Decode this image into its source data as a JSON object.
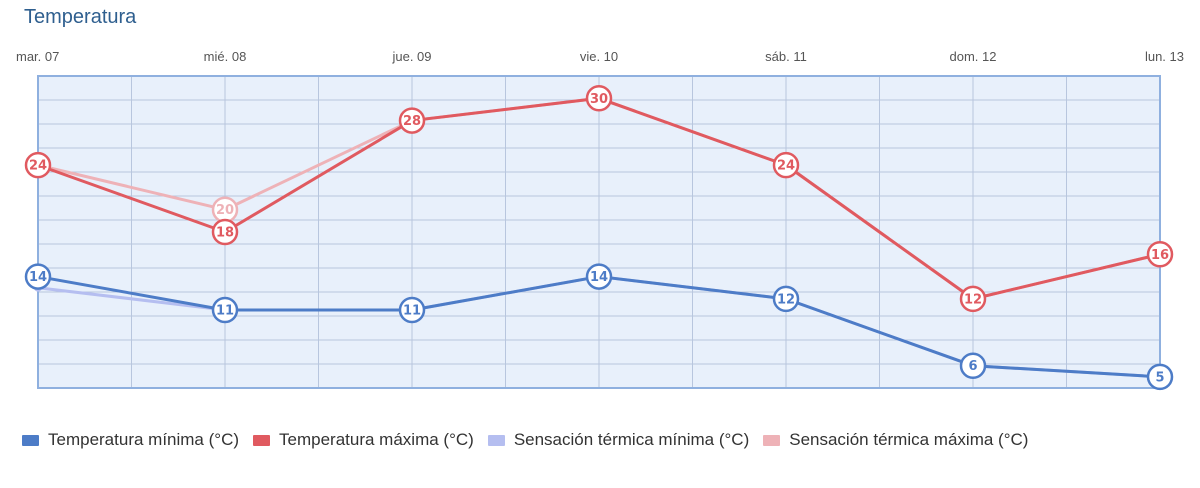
{
  "chart_data": {
    "type": "line",
    "title": "Temperatura",
    "categories": [
      "mar. 07",
      "mié. 08",
      "jue. 09",
      "vie. 10",
      "sáb. 11",
      "dom. 12",
      "lun. 13"
    ],
    "ylim": [
      4,
      32
    ],
    "grid": true,
    "legend_position": "bottom",
    "series": [
      {
        "name": "Sensación térmica mínima (°C)",
        "color": "#b5bef0",
        "values": [
          13,
          11,
          11,
          14,
          12,
          6,
          5
        ],
        "labeled": false
      },
      {
        "name": "Sensación térmica máxima (°C)",
        "color": "#eeb2b7",
        "values": [
          24,
          20,
          28,
          30,
          24,
          12,
          16
        ],
        "labeled": true,
        "labeled_index": [
          1
        ]
      },
      {
        "name": "Temperatura mínima (°C)",
        "color": "#4d7cc7",
        "values": [
          14,
          11,
          11,
          14,
          12,
          6,
          5
        ],
        "labeled": true
      },
      {
        "name": "Temperatura máxima (°C)",
        "color": "#e05a60",
        "values": [
          24,
          18,
          28,
          30,
          24,
          12,
          16
        ],
        "labeled": true
      }
    ],
    "legend_order": [
      2,
      3,
      0,
      1
    ]
  }
}
